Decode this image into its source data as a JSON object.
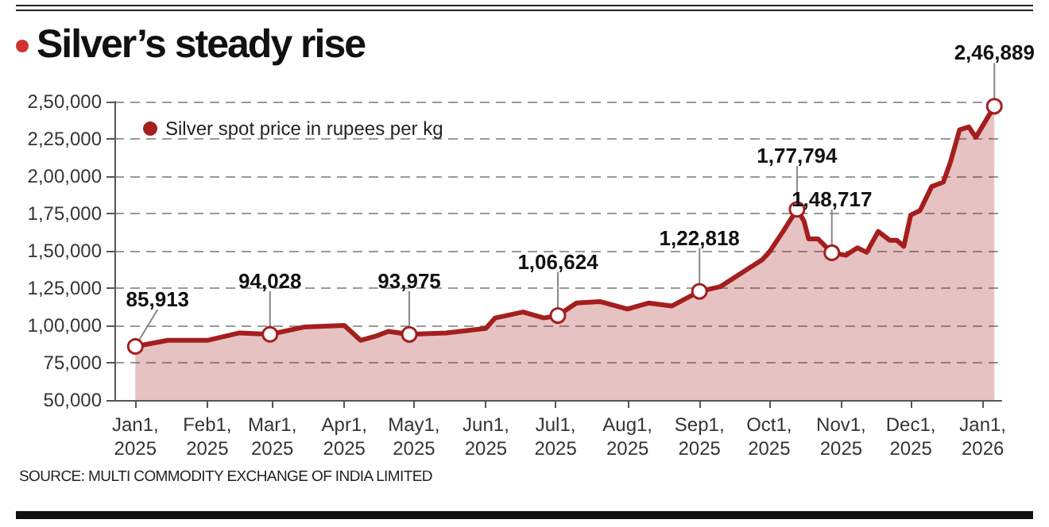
{
  "chart_data": {
    "type": "area",
    "title": "Silver’s steady rise",
    "annotations": [
      "SOURCE: MULTI COMMODITY EXCHANGE OF INDIA LIMITED"
    ],
    "x": [
      "2025-01-01",
      "2025-01-15",
      "2025-02-01",
      "2025-02-15",
      "2025-02-28",
      "2025-03-15",
      "2025-04-01",
      "2025-04-08",
      "2025-04-15",
      "2025-04-20",
      "2025-04-29",
      "2025-05-15",
      "2025-06-01",
      "2025-06-05",
      "2025-06-17",
      "2025-06-26",
      "2025-07-02",
      "2025-07-10",
      "2025-07-20",
      "2025-08-01",
      "2025-08-10",
      "2025-08-20",
      "2025-09-01",
      "2025-09-10",
      "2025-09-20",
      "2025-09-28",
      "2025-10-01",
      "2025-10-07",
      "2025-10-13",
      "2025-10-16",
      "2025-10-18",
      "2025-10-22",
      "2025-10-28",
      "2025-11-03",
      "2025-11-08",
      "2025-11-12",
      "2025-11-17",
      "2025-11-22",
      "2025-11-25",
      "2025-11-28",
      "2025-12-01",
      "2025-12-05",
      "2025-12-10",
      "2025-12-15",
      "2025-12-18",
      "2025-12-22",
      "2025-12-26",
      "2025-12-29",
      "2026-01-06"
    ],
    "series": [
      {
        "name": "Silver spot price in rupees per kg",
        "color": "#a51e1e",
        "values": [
          85913,
          90000,
          90000,
          95000,
          94028,
          99000,
          100000,
          90000,
          93000,
          96000,
          93975,
          95000,
          98000,
          105000,
          109000,
          105000,
          106624,
          115000,
          116000,
          111000,
          115000,
          113000,
          122818,
          126000,
          136000,
          144000,
          149000,
          163000,
          177794,
          170000,
          158000,
          158000,
          148717,
          147000,
          152000,
          149000,
          163000,
          157000,
          157000,
          153000,
          174000,
          177000,
          193000,
          196000,
          209000,
          231000,
          233000,
          226000,
          246889
        ],
        "value_labels": [
          "85,913",
          null,
          null,
          null,
          "94,028",
          null,
          null,
          null,
          null,
          null,
          "93,975",
          null,
          null,
          null,
          null,
          null,
          "1,06,624",
          null,
          null,
          null,
          null,
          null,
          "1,22,818",
          null,
          null,
          null,
          null,
          null,
          "1,77,794",
          null,
          null,
          null,
          "1,48,717",
          null,
          null,
          null,
          null,
          null,
          null,
          null,
          null,
          null,
          null,
          null,
          null,
          null,
          null,
          null,
          "2,46,889"
        ]
      }
    ],
    "ylim": [
      50000,
      250000
    ],
    "yticks": [
      {
        "value": 50000,
        "label": "50,000"
      },
      {
        "value": 75000,
        "label": "75,000"
      },
      {
        "value": 100000,
        "label": "1,00,000"
      },
      {
        "value": 125000,
        "label": "1,25,000"
      },
      {
        "value": 150000,
        "label": "1,50,000"
      },
      {
        "value": 175000,
        "label": "1,75,000"
      },
      {
        "value": 200000,
        "label": "2,00,000"
      },
      {
        "value": 225000,
        "label": "2,25,000"
      },
      {
        "value": 250000,
        "label": "2,50,000"
      }
    ],
    "xlim": [
      "2024-12-23",
      "2026-01-09"
    ],
    "xticks": [
      {
        "value": "2025-01-01",
        "label": "Jan1, 2025"
      },
      {
        "value": "2025-02-01",
        "label": "Feb1, 2025"
      },
      {
        "value": "2025-03-01",
        "label": "Mar1, 2025"
      },
      {
        "value": "2025-04-01",
        "label": "Apr1, 2025"
      },
      {
        "value": "2025-05-01",
        "label": "May1, 2025"
      },
      {
        "value": "2025-06-01",
        "label": "Jun1, 2025"
      },
      {
        "value": "2025-07-01",
        "label": "Jul1, 2025"
      },
      {
        "value": "2025-08-01",
        "label": "Aug1, 2025"
      },
      {
        "value": "2025-09-01",
        "label": "Sep1, 2025"
      },
      {
        "value": "2025-10-01",
        "label": "Oct1, 2025"
      },
      {
        "value": "2025-11-01",
        "label": "Nov1, 2025"
      },
      {
        "value": "2025-12-01",
        "label": "Dec1, 2025"
      },
      {
        "value": "2026-01-01",
        "label": "Jan1, 2026"
      }
    ],
    "grid": "y",
    "legend": "top left"
  }
}
